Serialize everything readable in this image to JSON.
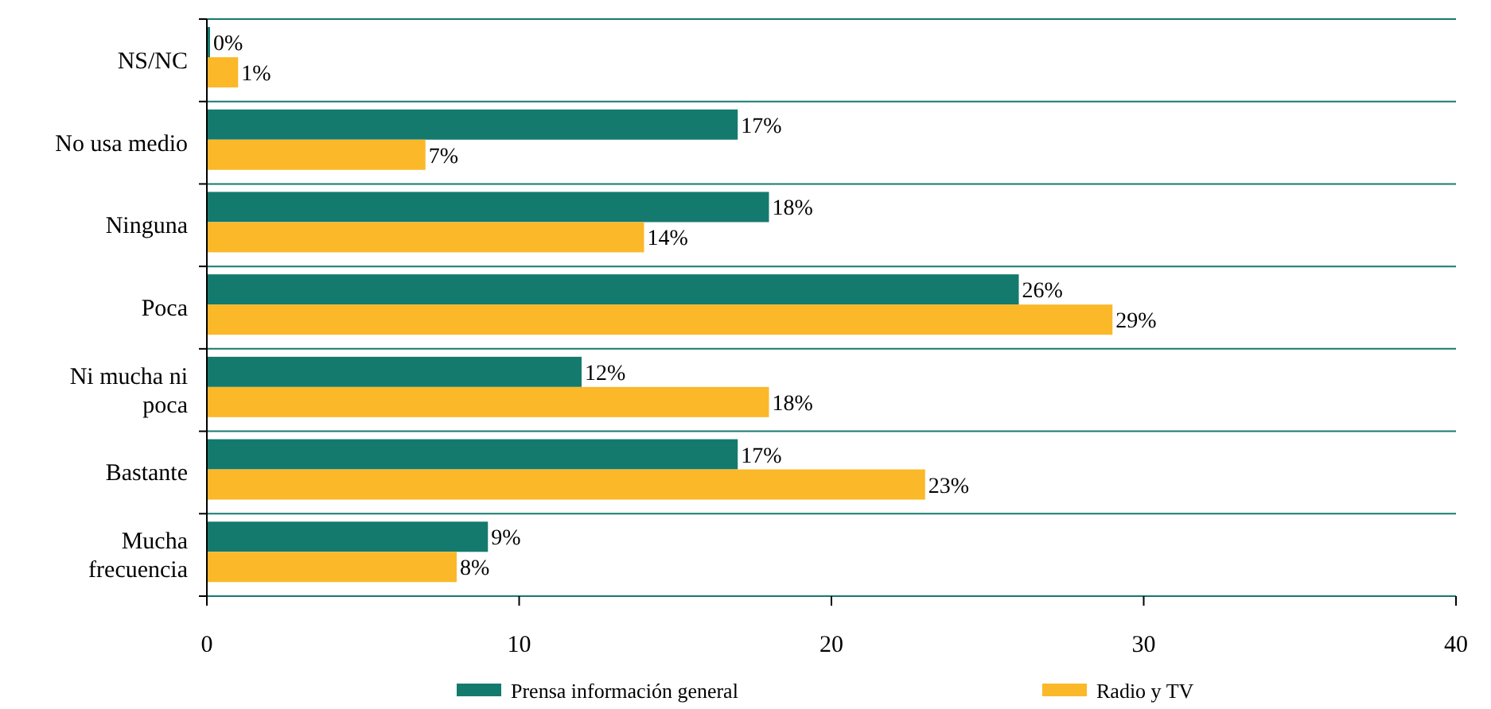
{
  "chart_data": {
    "type": "bar",
    "orientation": "horizontal",
    "categories": [
      "NS/NC",
      "No usa medio",
      "Ninguna",
      "Poca",
      "Ni mucha ni poca",
      "Bastante",
      "Mucha frecuencia"
    ],
    "series": [
      {
        "name": "Prensa información general",
        "color": "#157a6e",
        "values": [
          0,
          17,
          18,
          26,
          12,
          17,
          9
        ],
        "value_labels": [
          "0%",
          "17%",
          "18%",
          "26%",
          "12%",
          "17%",
          "9%"
        ]
      },
      {
        "name": "Radio y TV",
        "color": "#fbb829",
        "values": [
          1,
          7,
          14,
          29,
          18,
          23,
          8
        ],
        "value_labels": [
          "1%",
          "7%",
          "14%",
          "29%",
          "18%",
          "23%",
          "8%"
        ]
      }
    ],
    "xlim": [
      0,
      40
    ],
    "xticks": [
      0,
      10,
      20,
      30,
      40
    ],
    "grid": "y",
    "legend": "bottom"
  }
}
